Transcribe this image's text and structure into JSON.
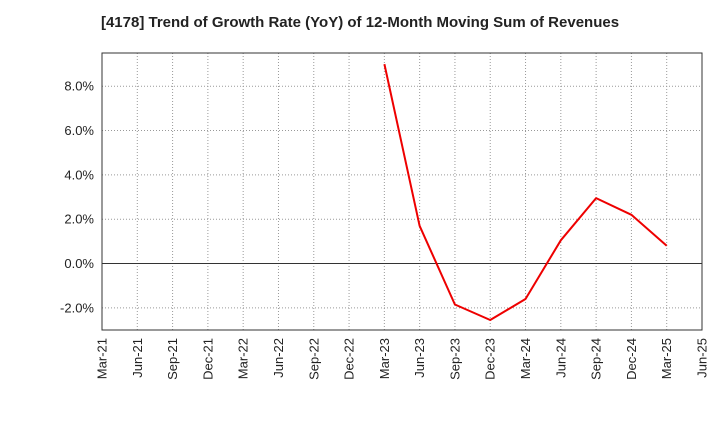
{
  "chart_data": {
    "type": "line",
    "title": "[4178]  Trend of Growth Rate (YoY) of 12-Month Moving Sum of Revenues",
    "xlabel": "",
    "ylabel": "",
    "x_ticks": [
      "Mar-21",
      "Jun-21",
      "Sep-21",
      "Dec-21",
      "Mar-22",
      "Jun-22",
      "Sep-22",
      "Dec-22",
      "Mar-23",
      "Jun-23",
      "Sep-23",
      "Dec-23",
      "Mar-24",
      "Jun-24",
      "Sep-24",
      "Dec-24",
      "Mar-25",
      "Jun-25"
    ],
    "y_ticks": [
      "-2.0%",
      "0.0%",
      "2.0%",
      "4.0%",
      "6.0%",
      "8.0%"
    ],
    "y_tick_values": [
      -2,
      0,
      2,
      4,
      6,
      8
    ],
    "ylim": [
      -3.0,
      9.5
    ],
    "grid": true,
    "line_color": "#ee0000",
    "series": [
      {
        "x": [
          "Mar-23",
          "Jun-23",
          "Sep-23",
          "Dec-23",
          "Mar-24",
          "Jun-24",
          "Sep-24",
          "Dec-24",
          "Mar-25"
        ],
        "values": [
          9.0,
          1.7,
          -1.85,
          -2.55,
          -1.6,
          1.05,
          2.95,
          2.2,
          0.8
        ]
      }
    ]
  }
}
